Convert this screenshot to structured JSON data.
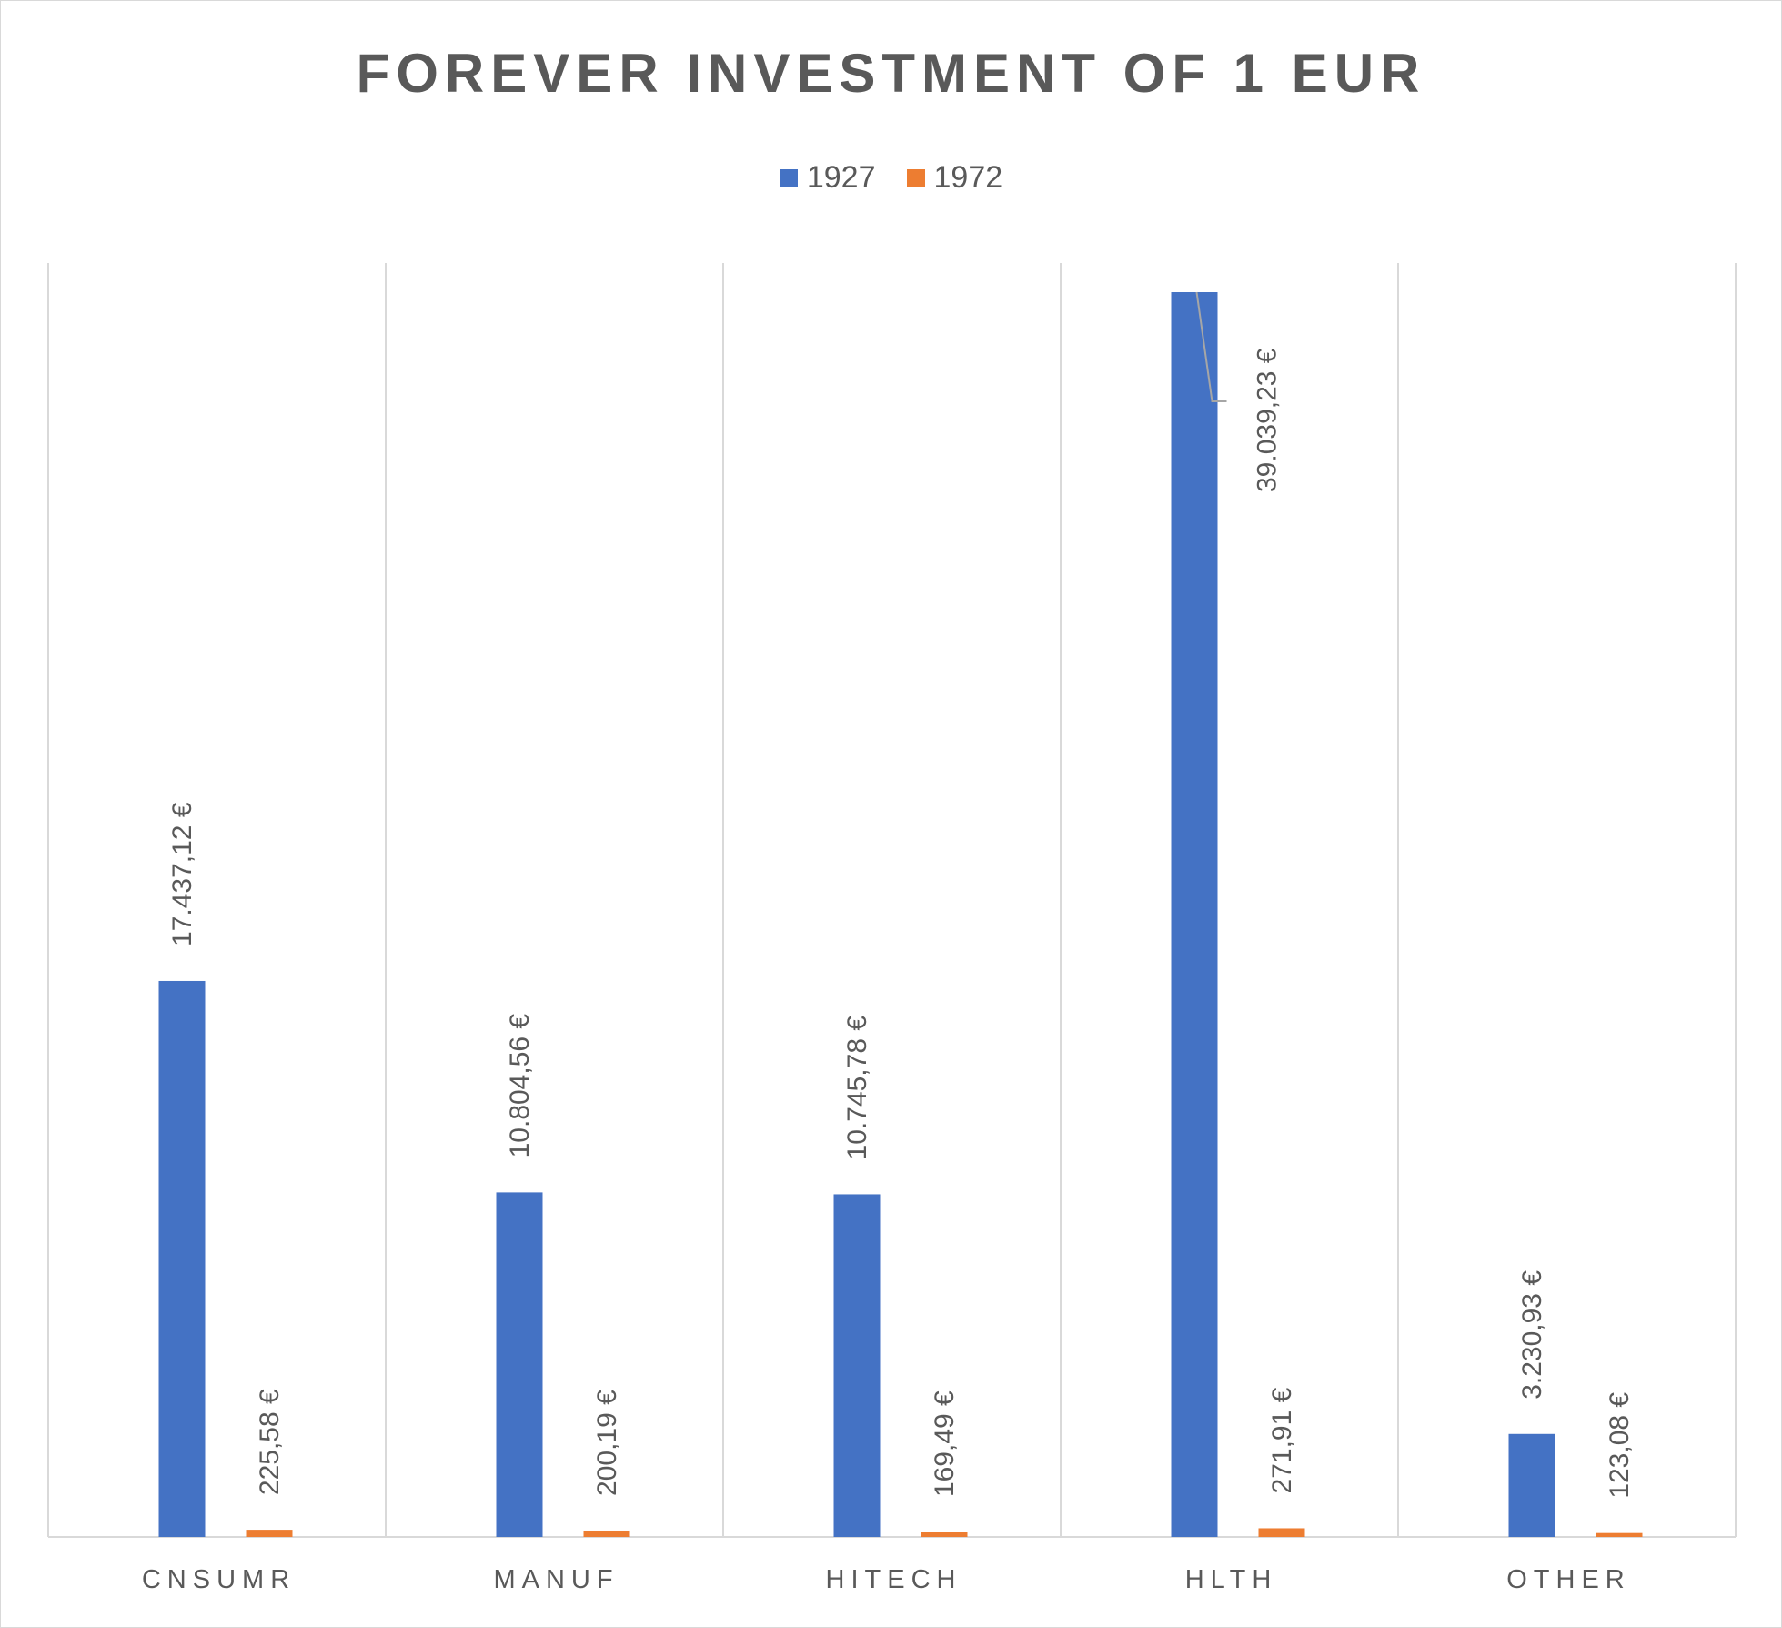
{
  "chart_data": {
    "type": "bar",
    "title": "FOREVER INVESTMENT OF 1 EUR",
    "categories": [
      "CNSUMR",
      "MANUF",
      "HITECH",
      "HLTH",
      "OTHER"
    ],
    "series": [
      {
        "name": "1927",
        "color": "#4472C4",
        "values": [
          17437.12,
          10804.56,
          10745.78,
          39039.23,
          3230.93
        ],
        "labels": [
          "17.437,12 €",
          "10.804,56 €",
          "10.745,78 €",
          "39.039,23 €",
          "3.230,93 €"
        ]
      },
      {
        "name": "1972",
        "color": "#ED7D31",
        "values": [
          225.58,
          200.19,
          169.49,
          271.91,
          123.08
        ],
        "labels": [
          "225,58 €",
          "200,19 €",
          "169,49 €",
          "271,91 €",
          "123,08 €"
        ]
      }
    ],
    "ylim": [
      0,
      39039.23
    ],
    "y_axis_visible": false,
    "vertical_gridlines": true,
    "legend_position": "top"
  }
}
